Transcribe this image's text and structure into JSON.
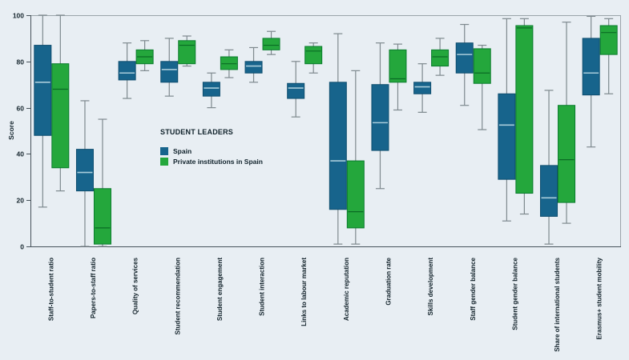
{
  "chart_data": {
    "type": "boxplot",
    "title": "",
    "ylabel": "Score",
    "xlabel": "",
    "ylim": [
      0,
      100
    ],
    "yticks": [
      0,
      20,
      40,
      60,
      80,
      100
    ],
    "grid": "off",
    "background_color": "#E8EEF3",
    "whisker_color": "#7E898E",
    "frame_color": "#9AA4AA",
    "axis_color": "#46525A",
    "legend": {
      "title": "STUDENT LEADERS",
      "position": "inside-left-middle",
      "entries": [
        {
          "label": "Spain",
          "color": "#17648C"
        },
        {
          "label": "Private institutions in Spain",
          "color": "#24A73C"
        }
      ]
    },
    "categories": [
      "Staff-to-student ratio",
      "Papers-to-staff ratio",
      "Quality of services",
      "Student recommendation",
      "Student engagement",
      "Student interaction",
      "Links to labour market",
      "Academic reputation",
      "Graduation rate",
      "Skills development",
      "Staff gender balance",
      "Student gender balance",
      "Share of international students",
      "Erasmus+ student mobility"
    ],
    "series": [
      {
        "name": "Spain",
        "color": "#17648C",
        "border_color": "#0F4E6F",
        "median_color": "#A9CCDA",
        "boxes": [
          {
            "low": 17,
            "q1": 48,
            "median": 71,
            "q3": 87,
            "high": 100
          },
          {
            "low": 0,
            "q1": 24,
            "median": 32,
            "q3": 42,
            "high": 63
          },
          {
            "low": 64,
            "q1": 72,
            "median": 75,
            "q3": 80,
            "high": 88
          },
          {
            "low": 65,
            "q1": 71,
            "median": 76.5,
            "q3": 80,
            "high": 90
          },
          {
            "low": 60,
            "q1": 65,
            "median": 68.5,
            "q3": 71,
            "high": 75
          },
          {
            "low": 71,
            "q1": 75,
            "median": 78,
            "q3": 80,
            "high": 86
          },
          {
            "low": 56,
            "q1": 64,
            "median": 68.5,
            "q3": 70.5,
            "high": 80
          },
          {
            "low": 1,
            "q1": 16,
            "median": 37,
            "q3": 71,
            "high": 92
          },
          {
            "low": 25,
            "q1": 41.5,
            "median": 53.5,
            "q3": 70,
            "high": 88
          },
          {
            "low": 58,
            "q1": 66,
            "median": 69,
            "q3": 71,
            "high": 79
          },
          {
            "low": 61,
            "q1": 75,
            "median": 83,
            "q3": 88,
            "high": 96
          },
          {
            "low": 11,
            "q1": 29,
            "median": 52.5,
            "q3": 66,
            "high": 98.5
          },
          {
            "low": 1,
            "q1": 13,
            "median": 21,
            "q3": 35,
            "high": 67.5
          },
          {
            "low": 43,
            "q1": 65.5,
            "median": 75,
            "q3": 90,
            "high": 99.5
          }
        ]
      },
      {
        "name": "Private institutions in Spain",
        "color": "#24A73C",
        "border_color": "#0A7C2D",
        "median_color": "#0A6B24",
        "boxes": [
          {
            "low": 24,
            "q1": 34,
            "median": 68,
            "q3": 79,
            "high": 100
          },
          {
            "low": 0,
            "q1": 1,
            "median": 8,
            "q3": 25,
            "high": 55
          },
          {
            "low": 76,
            "q1": 79,
            "median": 82,
            "q3": 85,
            "high": 89
          },
          {
            "low": 78,
            "q1": 79,
            "median": 87,
            "q3": 89,
            "high": 91
          },
          {
            "low": 73,
            "q1": 76.5,
            "median": 79,
            "q3": 82,
            "high": 85
          },
          {
            "low": 83,
            "q1": 85,
            "median": 87,
            "q3": 90,
            "high": 93
          },
          {
            "low": 75,
            "q1": 79,
            "median": 84.5,
            "q3": 86.5,
            "high": 88
          },
          {
            "low": 1,
            "q1": 8,
            "median": 15,
            "q3": 37,
            "high": 76
          },
          {
            "low": 59,
            "q1": 71,
            "median": 72.5,
            "q3": 85,
            "high": 87.5
          },
          {
            "low": 74,
            "q1": 78,
            "median": 82,
            "q3": 85,
            "high": 90
          },
          {
            "low": 50.5,
            "q1": 70.5,
            "median": 75,
            "q3": 85.5,
            "high": 87
          },
          {
            "low": 14,
            "q1": 23,
            "median": 94.5,
            "q3": 95.5,
            "high": 98.5
          },
          {
            "low": 10,
            "q1": 19,
            "median": 37.5,
            "q3": 61,
            "high": 97
          },
          {
            "low": 66,
            "q1": 83,
            "median": 92.5,
            "q3": 95.5,
            "high": 98.5
          }
        ]
      }
    ]
  }
}
